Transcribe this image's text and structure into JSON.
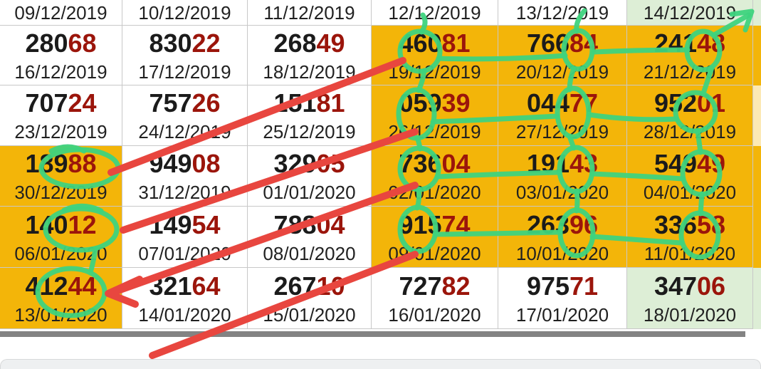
{
  "colors": {
    "orange_cell": "#f3b509",
    "green_cell": "#ddeed6",
    "cream_cell": "#fce9b5",
    "digit_black": "#1b1b1b",
    "digit_red": "#9b150b",
    "date_text": "#212121",
    "grid_border": "#c8c8c8",
    "marker_green": "#3ed37e",
    "marker_red": "#e8463f",
    "divider_gray": "#838383",
    "footer_bg": "#eef0f1",
    "footer_line": "#d7d9da"
  },
  "table": {
    "header_row": {
      "dates": [
        "09/12/2019",
        "10/12/2019",
        "11/12/2019",
        "12/12/2019",
        "13/12/2019",
        "14/12/2019"
      ],
      "bgs": [
        "white",
        "white",
        "white",
        "white",
        "white",
        "green"
      ]
    },
    "rows": [
      {
        "cells": [
          {
            "number": "28068",
            "date": "16/12/2019",
            "bg": "white"
          },
          {
            "number": "83022",
            "date": "17/12/2019",
            "bg": "white"
          },
          {
            "number": "26849",
            "date": "18/12/2019",
            "bg": "white"
          },
          {
            "number": "46081",
            "date": "19/12/2019",
            "bg": "orange"
          },
          {
            "number": "76684",
            "date": "20/12/2019",
            "bg": "orange"
          },
          {
            "number": "24148",
            "date": "21/12/2019",
            "bg": "orange"
          }
        ]
      },
      {
        "cells": [
          {
            "number": "70724",
            "date": "23/12/2019",
            "bg": "white"
          },
          {
            "number": "75726",
            "date": "24/12/2019",
            "bg": "white"
          },
          {
            "number": "15181",
            "date": "25/12/2019",
            "bg": "white"
          },
          {
            "number": "05939",
            "date": "26/12/2019",
            "bg": "orange"
          },
          {
            "number": "04477",
            "date": "27/12/2019",
            "bg": "orange"
          },
          {
            "number": "95201",
            "date": "28/12/2019",
            "bg": "orange"
          }
        ]
      },
      {
        "cells": [
          {
            "number": "18988",
            "date": "30/12/2019",
            "bg": "orange"
          },
          {
            "number": "94908",
            "date": "31/12/2019",
            "bg": "white"
          },
          {
            "number": "32905",
            "date": "01/01/2020",
            "bg": "white"
          },
          {
            "number": "73604",
            "date": "02/01/2020",
            "bg": "orange"
          },
          {
            "number": "19143",
            "date": "03/01/2020",
            "bg": "orange"
          },
          {
            "number": "54949",
            "date": "04/01/2020",
            "bg": "orange"
          }
        ]
      },
      {
        "cells": [
          {
            "number": "14012",
            "date": "06/01/2020",
            "bg": "orange"
          },
          {
            "number": "14954",
            "date": "07/01/2020",
            "bg": "white"
          },
          {
            "number": "78804",
            "date": "08/01/2020",
            "bg": "white"
          },
          {
            "number": "91574",
            "date": "09/01/2020",
            "bg": "orange"
          },
          {
            "number": "26396",
            "date": "10/01/2020",
            "bg": "orange"
          },
          {
            "number": "33658",
            "date": "11/01/2020",
            "bg": "orange"
          }
        ]
      },
      {
        "cells": [
          {
            "number": "41244",
            "date": "13/01/2020",
            "bg": "orange"
          },
          {
            "number": "32164",
            "date": "14/01/2020",
            "bg": "white"
          },
          {
            "number": "26710",
            "date": "15/01/2020",
            "bg": "white"
          },
          {
            "number": "72782",
            "date": "16/01/2020",
            "bg": "white"
          },
          {
            "number": "97571",
            "date": "17/01/2020",
            "bg": "white"
          },
          {
            "number": "34706",
            "date": "18/01/2020",
            "bg": "green"
          }
        ]
      }
    ],
    "number_black_digits": 3,
    "number_red_digits": 2
  },
  "right_sliver_bgs": [
    "green",
    "orange",
    "cream",
    "orange",
    "orange",
    "green"
  ],
  "annotations": {
    "green_ellipses": [
      [
        112,
        236,
        54,
        26
      ],
      [
        114,
        322,
        50,
        29
      ],
      [
        100,
        410,
        47,
        33
      ],
      [
        590,
        72,
        28,
        28
      ],
      [
        585,
        160,
        25,
        34
      ],
      [
        589,
        237,
        27,
        29
      ],
      [
        587,
        322,
        25,
        31
      ],
      [
        812,
        70,
        20,
        27
      ],
      [
        805,
        158,
        22,
        34
      ],
      [
        809,
        238,
        23,
        31
      ],
      [
        810,
        327,
        23,
        32
      ],
      [
        988,
        71,
        23,
        27
      ],
      [
        977,
        157,
        28,
        27
      ],
      [
        985,
        243,
        26,
        30
      ],
      [
        983,
        330,
        26,
        31
      ]
    ],
    "green_paths": [
      "M616 82 Q700 85 794 78",
      "M834 73 Q900 70 966 70",
      "M608 171 Q690 168 783 163",
      "M827 161 Q890 170 950 167",
      "M615 248 Q700 244 786 242",
      "M832 244 Q900 247 959 251",
      "M611 329 Q700 328 787 326",
      "M832 332 Q898 337 957 341",
      "M594 21 Q601 32 592 45",
      "M596 99 Q594 114 588 127",
      "M586 193 Q589 201 590 209",
      "M588 265 Q590 279 586 292",
      "M821 15 Q808 30 810 44",
      "M806 96 Q800 112 800 126",
      "M800 191 Q803 200 806 208",
      "M810 268 Q812 282 810 296",
      "M1000 95 Q994 113 988 131",
      "M980 183 Q982 198 984 214",
      "M986 272 Q985 286 984 300",
      "M72 212 Q95 200 118 212",
      "M90 295 Q116 283 142 296",
      "M134 349 Q132 364 128 379",
      "M1003 49 L1052 21",
      "M1028 20 L1056 16 L1047 42"
    ],
    "red_paths": [
      "M156 242 L566 85",
      "M173 323 L583 185",
      "M583 260 L160 410",
      "M196 392 L152 412 L190 427",
      "M214 499 L583 357"
    ],
    "green_stroke_width": 7,
    "red_stroke_width": 10
  }
}
